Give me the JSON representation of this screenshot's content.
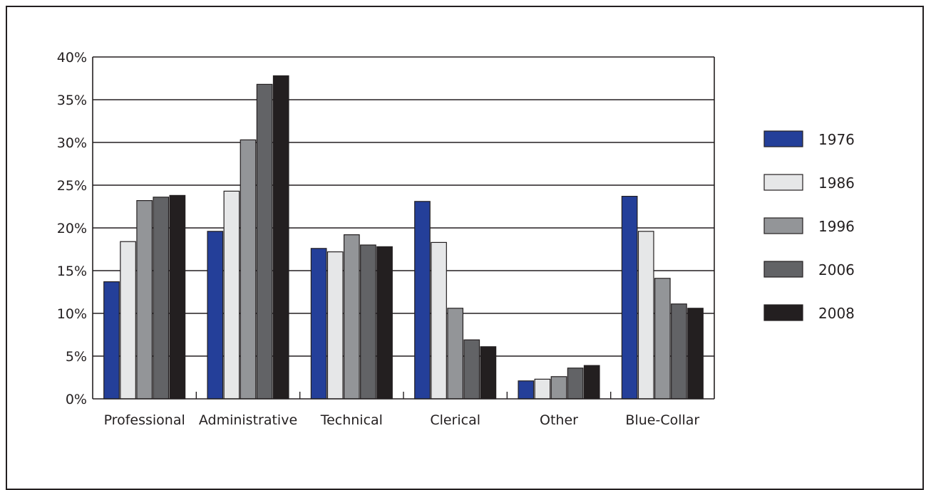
{
  "chart_data": {
    "type": "bar",
    "title": "",
    "xlabel": "",
    "ylabel": "",
    "categories": [
      "Professional",
      "Administrative",
      "Technical",
      "Clerical",
      "Other",
      "Blue-Collar"
    ],
    "ylim": [
      0,
      40
    ],
    "yticks": [
      0,
      5,
      10,
      15,
      20,
      25,
      30,
      35,
      40
    ],
    "ytick_labels": [
      "0%",
      "5%",
      "10%",
      "15%",
      "20%",
      "25%",
      "30%",
      "35%",
      "40%"
    ],
    "grid": true,
    "legend_position": "right",
    "series": [
      {
        "name": "1976",
        "color": "#243f99",
        "values": [
          13.7,
          19.6,
          17.6,
          23.1,
          2.1,
          23.7
        ]
      },
      {
        "name": "1986",
        "color": "#e6e7e8",
        "values": [
          18.4,
          24.3,
          17.2,
          18.3,
          2.3,
          19.6
        ]
      },
      {
        "name": "1996",
        "color": "#939598",
        "values": [
          23.2,
          30.3,
          19.2,
          10.6,
          2.6,
          14.1
        ]
      },
      {
        "name": "2006",
        "color": "#626366",
        "values": [
          23.6,
          36.8,
          18.0,
          6.9,
          3.6,
          11.1
        ]
      },
      {
        "name": "2008",
        "color": "#231f20",
        "values": [
          23.8,
          37.8,
          17.8,
          6.1,
          3.9,
          10.6
        ]
      }
    ]
  }
}
